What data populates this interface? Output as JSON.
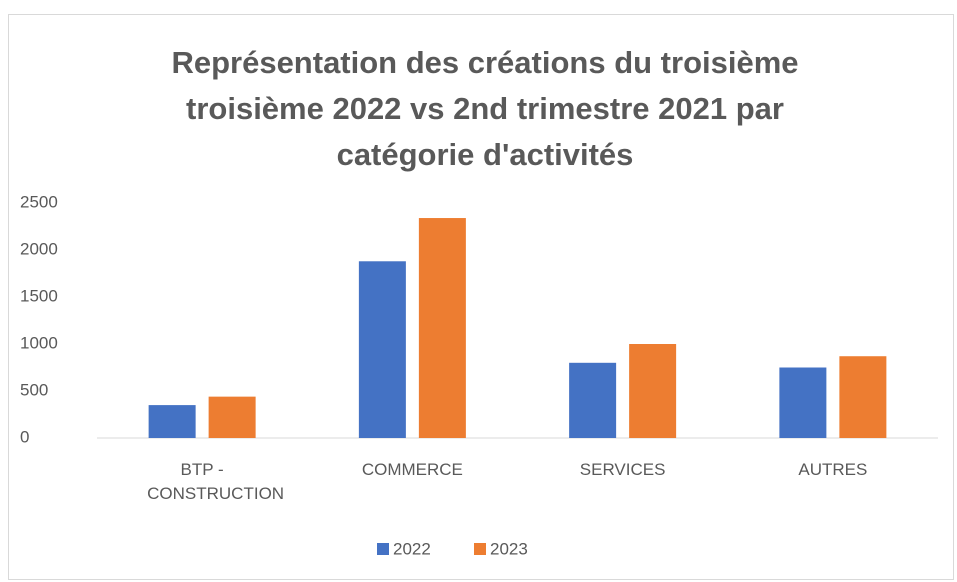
{
  "chart_data": {
    "type": "bar",
    "title": "Représentation des créations du troisième troisième 2022 vs 2nd trimestre 2021 par catégorie d'activités",
    "categories": [
      "BTP - CONSTRUCTION",
      "COMMERCE",
      "SERVICES",
      "AUTRES"
    ],
    "series": [
      {
        "name": "2022",
        "color": "#4472c4",
        "values": [
          350,
          1880,
          800,
          750
        ]
      },
      {
        "name": "2023",
        "color": "#ed7d31",
        "values": [
          440,
          2340,
          1000,
          870
        ]
      }
    ],
    "ylim": [
      0,
      2500
    ],
    "yticks": [
      0,
      500,
      1000,
      1500,
      2000,
      2500
    ],
    "grid": false,
    "legend": "bottom"
  }
}
